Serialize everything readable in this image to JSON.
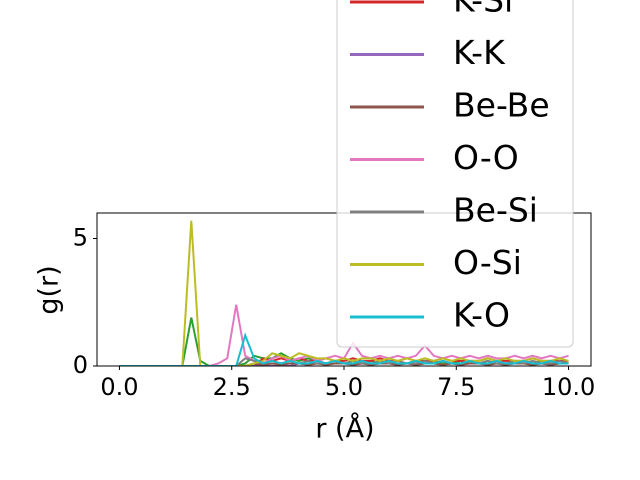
{
  "chart_data": {
    "type": "line",
    "xlabel": "r (Å)",
    "ylabel": "g(r)",
    "xlim": [
      -0.5,
      10.5
    ],
    "ylim": [
      0,
      6
    ],
    "xticks": [
      {
        "value": 0,
        "label": "0.0"
      },
      2.5,
      {
        "value": 5,
        "label": "5.0"
      },
      7.5,
      {
        "value": 10,
        "label": "10.0"
      }
    ],
    "yticks": [
      0,
      5
    ],
    "x": [
      0,
      0.2,
      0.4,
      0.6,
      0.8,
      1,
      1.2,
      1.4,
      1.6,
      1.8,
      2,
      2.2,
      2.4,
      2.6,
      2.8,
      3,
      3.2,
      3.4,
      3.6,
      3.8,
      4,
      4.2,
      4.4,
      4.6,
      4.8,
      5,
      5.2,
      5.4,
      5.6,
      5.8,
      6,
      6.2,
      6.4,
      6.6,
      6.8,
      7,
      7.2,
      7.4,
      7.6,
      7.8,
      8,
      8.2,
      8.4,
      8.6,
      8.8,
      9,
      9.2,
      9.4,
      9.6,
      9.8,
      10
    ],
    "series": [
      {
        "color": "#2ca02c",
        "values": [
          0,
          0,
          0,
          0,
          0,
          0,
          0,
          0,
          1.9,
          0.2,
          0,
          0,
          0,
          0,
          0.1,
          0.4,
          0.3,
          0.3,
          0.5,
          0.3,
          0.2,
          0.3,
          0.2,
          0.1,
          0.2,
          0.1,
          0.2,
          0.1,
          0.2,
          0.1,
          0.2,
          0.1,
          0.1,
          0.2,
          0.1,
          0.2,
          0.1,
          0.1,
          0.2,
          0.1,
          0.1,
          0.2,
          0.1,
          0.1,
          0.2,
          0.1,
          0.1,
          0.2,
          0.1,
          0.1,
          0.1
        ]
      },
      {
        "name": "K-Si",
        "color": "#d62728",
        "values": [
          0,
          0,
          0,
          0,
          0,
          0,
          0,
          0,
          0,
          0,
          0,
          0,
          0,
          0,
          0,
          0,
          0.3,
          0.2,
          0.3,
          0.2,
          0.3,
          0.2,
          0.2,
          0.3,
          0.2,
          0.2,
          0.3,
          0.2,
          0.2,
          0.3,
          0.2,
          0.2,
          0.3,
          0.2,
          0.2,
          0.2,
          0.3,
          0.2,
          0.2,
          0.2,
          0.2,
          0.3,
          0.2,
          0.2,
          0.2,
          0.2,
          0.3,
          0.2,
          0.2,
          0.2,
          0.2
        ]
      },
      {
        "name": "K-K",
        "color": "#9467bd",
        "values": [
          0,
          0,
          0,
          0,
          0,
          0,
          0,
          0,
          0,
          0,
          0,
          0,
          0,
          0,
          0,
          0,
          0,
          0,
          0,
          0,
          0.1,
          0.1,
          0.2,
          0.1,
          0.2,
          0.1,
          0.1,
          0.2,
          0.1,
          0.1,
          0.2,
          0.1,
          0.1,
          0.2,
          0.1,
          0.1,
          0.2,
          0.1,
          0.1,
          0.2,
          0.1,
          0.1,
          0.2,
          0.1,
          0.1,
          0.2,
          0.1,
          0.1,
          0.2,
          0.1,
          0.1
        ]
      },
      {
        "name": "Be-Be",
        "color": "#8c564b",
        "values": [
          0,
          0,
          0,
          0,
          0,
          0,
          0,
          0,
          0,
          0,
          0,
          0,
          0,
          0,
          0,
          0.1,
          0.05,
          0.1,
          0.05,
          0.1,
          0.1,
          0.05,
          0.1,
          0.05,
          0.1,
          0.1,
          0.05,
          0.1,
          0.05,
          0.1,
          0.1,
          0.05,
          0.1,
          0.05,
          0.1,
          0.1,
          0.05,
          0.1,
          0.05,
          0.1,
          0.1,
          0.05,
          0.1,
          0.05,
          0.1,
          0.1,
          0.05,
          0.1,
          0.05,
          0.1,
          0.1
        ]
      },
      {
        "name": "O-O",
        "color": "#e377c2",
        "values": [
          0,
          0,
          0,
          0,
          0,
          0,
          0,
          0,
          0,
          0,
          0,
          0.1,
          0.3,
          2.4,
          0.4,
          0.2,
          0.1,
          0.3,
          0.4,
          0.2,
          0.3,
          0.4,
          0.2,
          0.3,
          0.4,
          0.3,
          0.9,
          0.4,
          0.3,
          0.4,
          0.3,
          0.4,
          0.3,
          0.4,
          0.8,
          0.4,
          0.3,
          0.4,
          0.3,
          0.4,
          0.3,
          0.4,
          0.3,
          0.3,
          0.4,
          0.3,
          0.4,
          0.3,
          0.4,
          0.3,
          0.4
        ]
      },
      {
        "name": "Be-Si",
        "color": "#7f7f7f",
        "values": [
          0,
          0,
          0,
          0,
          0,
          0,
          0,
          0,
          0,
          0,
          0,
          0,
          0,
          0,
          0.3,
          0.2,
          0.1,
          0.2,
          0.1,
          0.2,
          0.1,
          0.2,
          0.1,
          0.1,
          0.2,
          0.1,
          0.2,
          0.1,
          0.1,
          0.2,
          0.1,
          0.2,
          0.1,
          0.1,
          0.2,
          0.1,
          0.2,
          0.1,
          0.1,
          0.2,
          0.1,
          0.2,
          0.1,
          0.1,
          0.2,
          0.1,
          0.2,
          0.1,
          0.1,
          0.2,
          0.1
        ]
      },
      {
        "name": "O-Si",
        "color": "#bcbd22",
        "values": [
          0,
          0,
          0,
          0,
          0,
          0,
          0,
          0,
          5.7,
          0,
          0,
          0,
          0,
          0,
          0,
          0.1,
          0.2,
          0.5,
          0.4,
          0.3,
          0.5,
          0.4,
          0.3,
          0.3,
          0.2,
          0.3,
          0.2,
          0.3,
          0.3,
          0.2,
          0.3,
          0.2,
          0.3,
          0.2,
          0.3,
          0.2,
          0.3,
          0.2,
          0.3,
          0.2,
          0.2,
          0.3,
          0.2,
          0.3,
          0.2,
          0.2,
          0.3,
          0.2,
          0.2,
          0.3,
          0.2
        ]
      },
      {
        "name": "K-O",
        "color": "#17becf",
        "values": [
          0,
          0,
          0,
          0,
          0,
          0,
          0,
          0,
          0,
          0,
          0,
          0,
          0,
          0,
          1.2,
          0.3,
          0.1,
          0.2,
          0.1,
          0.2,
          0.1,
          0.1,
          0.2,
          0.1,
          0.2,
          0.1,
          0.1,
          0.2,
          0.1,
          0.1,
          0.2,
          0.1,
          0.1,
          0.2,
          0.1,
          0.1,
          0.2,
          0.1,
          0.1,
          0.2,
          0.1,
          0.1,
          0.2,
          0.1,
          0.1,
          0.2,
          0.1,
          0.1,
          0.2,
          0.1,
          0.1
        ]
      }
    ]
  }
}
